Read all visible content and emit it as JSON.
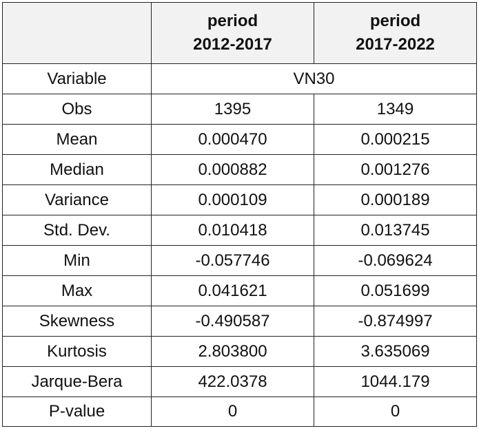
{
  "header": {
    "col1_line1": "period",
    "col1_line2": "2012-2017",
    "col2_line1": "period",
    "col2_line2": "2017-2022"
  },
  "variable_row": {
    "label": "Variable",
    "value": "VN30"
  },
  "rows": [
    {
      "label": "Obs",
      "p1": "1395",
      "p2": "1349"
    },
    {
      "label": "Mean",
      "p1": "0.000470",
      "p2": "0.000215"
    },
    {
      "label": "Median",
      "p1": "0.000882",
      "p2": "0.001276"
    },
    {
      "label": "Variance",
      "p1": "0.000109",
      "p2": "0.000189"
    },
    {
      "label": "Std. Dev.",
      "p1": "0.010418",
      "p2": "0.013745"
    },
    {
      "label": "Min",
      "p1": "-0.057746",
      "p2": "-0.069624"
    },
    {
      "label": "Max",
      "p1": "0.041621",
      "p2": "0.051699"
    },
    {
      "label": "Skewness",
      "p1": "-0.490587",
      "p2": "-0.874997"
    },
    {
      "label": "Kurtosis",
      "p1": "2.803800",
      "p2": "3.635069"
    },
    {
      "label": "Jarque-Bera",
      "p1": "422.0378",
      "p2": "1044.179"
    },
    {
      "label": "P-value",
      "p1": "0",
      "p2": "0"
    }
  ]
}
